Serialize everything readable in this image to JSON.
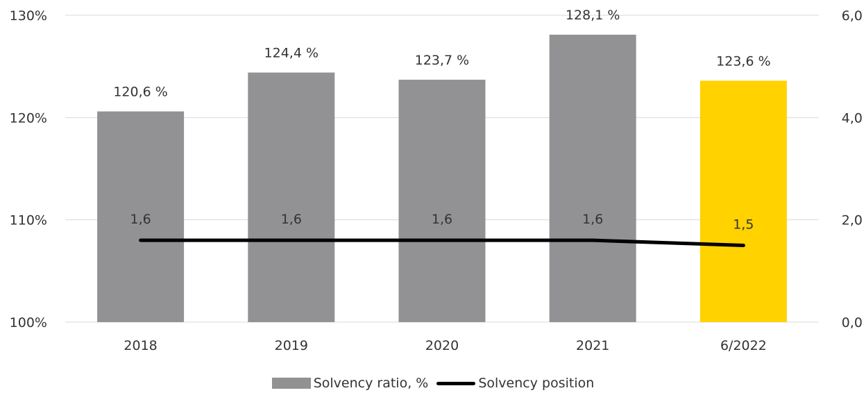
{
  "chart_data": {
    "type": "bar+line",
    "categories": [
      "2018",
      "2019",
      "2020",
      "2021",
      "6/2022"
    ],
    "series": [
      {
        "name": "Solvency ratio, %",
        "type": "bar",
        "axis": "left",
        "values": [
          120.6,
          124.4,
          123.7,
          128.1,
          123.6
        ],
        "labels": [
          "120,6 %",
          "124,4 %",
          "123,7 %",
          "128,1 %",
          "123,6 %"
        ],
        "colors": [
          "#929194",
          "#929194",
          "#929194",
          "#929194",
          "#FFD200"
        ]
      },
      {
        "name": "Solvency position",
        "type": "line",
        "axis": "right",
        "values": [
          1.6,
          1.6,
          1.6,
          1.6,
          1.5
        ],
        "labels": [
          "1,6",
          "1,6",
          "1,6",
          "1,6",
          "1,5"
        ],
        "color": "#000000"
      }
    ],
    "y_left": {
      "min": 100,
      "max": 130,
      "ticks": [
        "100%",
        "110%",
        "120%",
        "130%"
      ]
    },
    "y_right": {
      "min": 0,
      "max": 6,
      "ticks": [
        "0,0",
        "2,0",
        "4,0",
        "6,0"
      ]
    },
    "grid": true,
    "legend_position": "bottom",
    "title": "",
    "xlabel": "",
    "ylabel": ""
  },
  "legend": {
    "bar_label": "Solvency ratio, %",
    "line_label": "Solvency position"
  }
}
